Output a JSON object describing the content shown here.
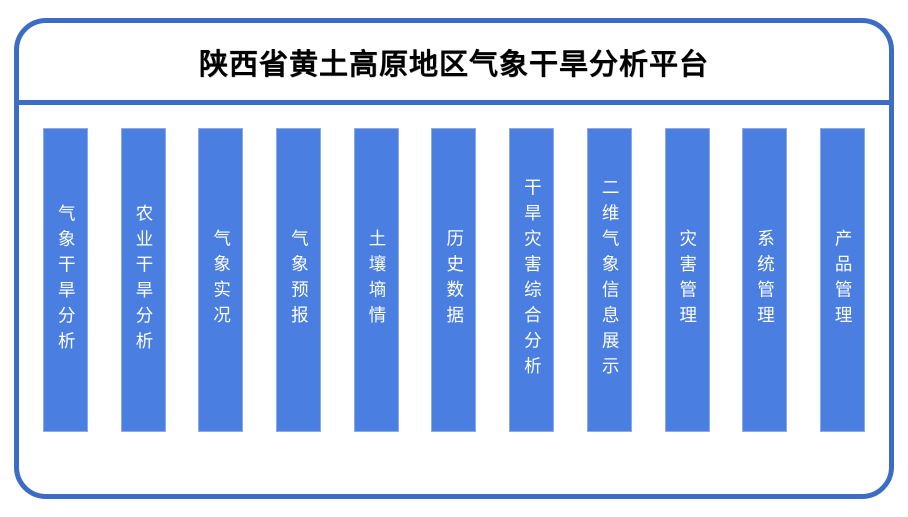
{
  "title": "陕西省黄土高原地区气象干旱分析平台",
  "colors": {
    "frame_border": "#3d6cc5",
    "bar_fill": "#4a7ee0",
    "bar_text": "#ffffff",
    "title_text": "#000000",
    "background": "#ffffff"
  },
  "modules": [
    {
      "label": "气象干旱分析"
    },
    {
      "label": "农业干旱分析"
    },
    {
      "label": "气象实况"
    },
    {
      "label": "气象预报"
    },
    {
      "label": "土壤墒情"
    },
    {
      "label": "历史数据"
    },
    {
      "label": "干旱灾害综合分析"
    },
    {
      "label": "二维气象信息展示"
    },
    {
      "label": "灾害管理"
    },
    {
      "label": "系统管理"
    },
    {
      "label": "产品管理"
    }
  ]
}
